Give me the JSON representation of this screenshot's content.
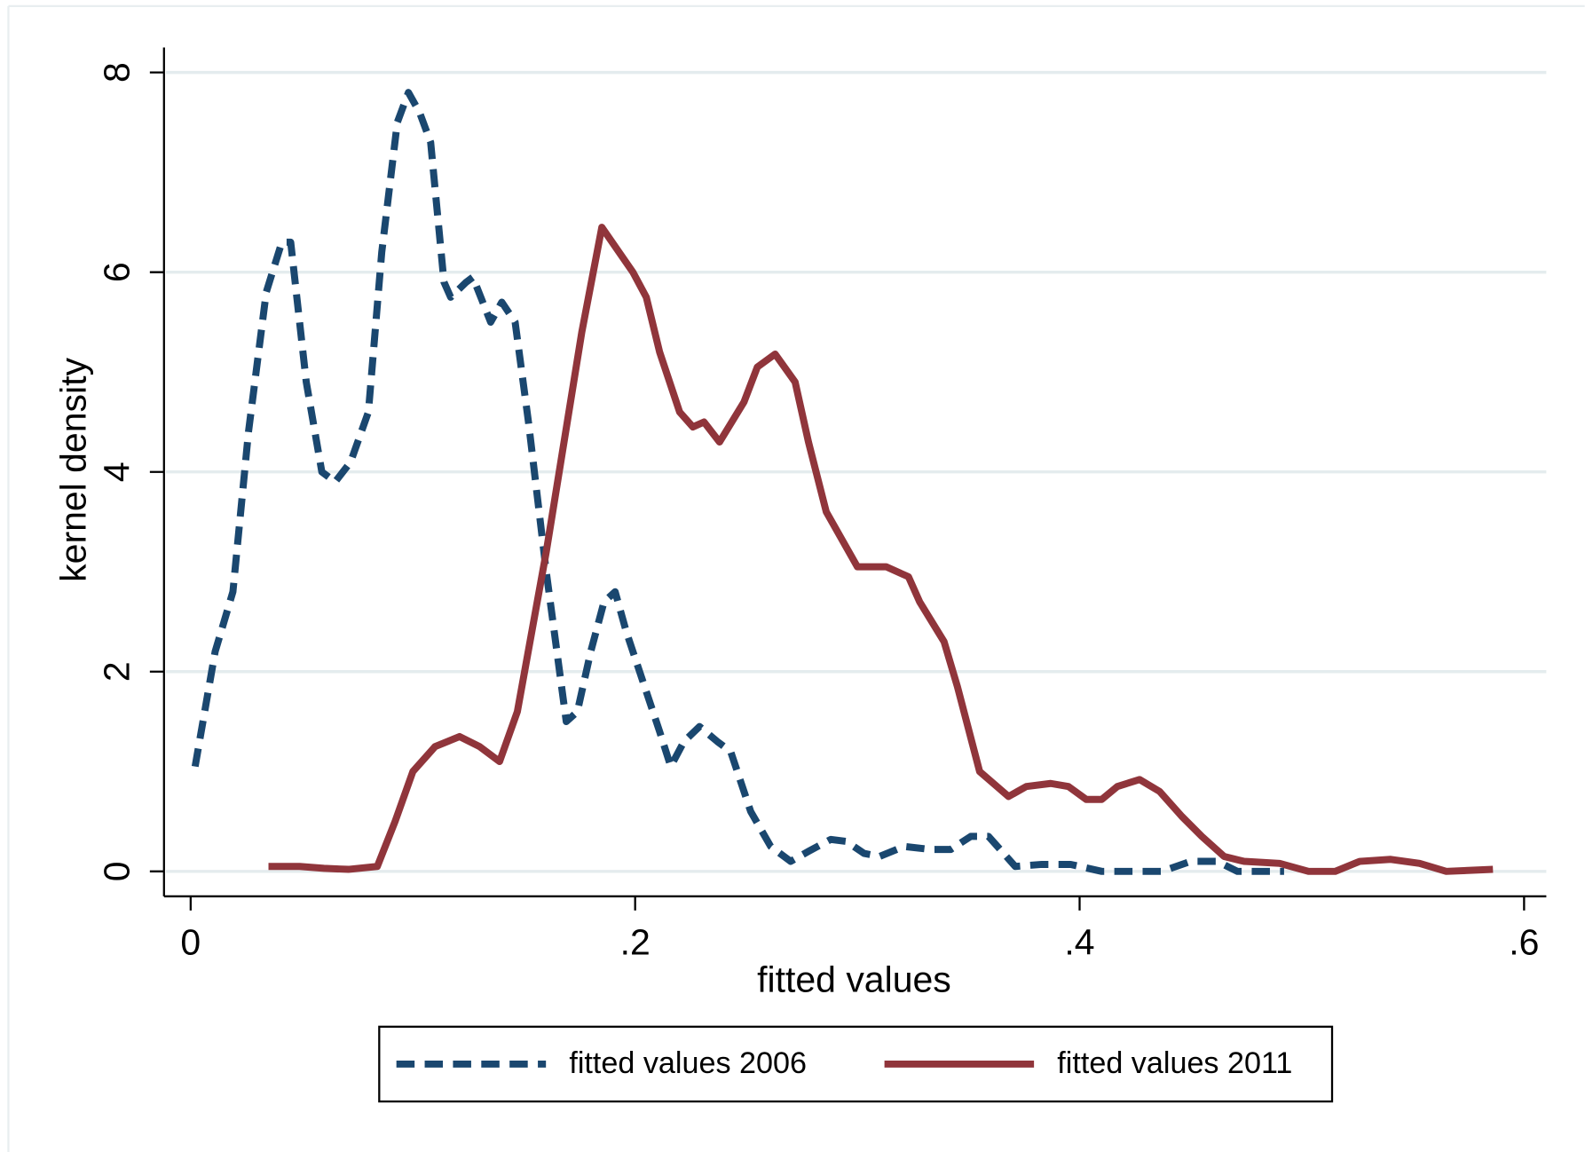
{
  "chart_data": {
    "type": "line",
    "xlabel": "fitted values",
    "ylabel": "kernel density",
    "xlim": [
      -0.012,
      0.61
    ],
    "ylim": [
      -0.25,
      8.25
    ],
    "xticks": [
      0,
      {
        "value": 0.2,
        "label": ".2"
      },
      {
        "value": 0.4,
        "label": ".4"
      },
      {
        "value": 0.6,
        "label": ".6"
      }
    ],
    "yticks": [
      0,
      2,
      4,
      6,
      8
    ],
    "grid": true,
    "legend": "bottom",
    "series": [
      {
        "name": "fitted values 2006",
        "color": "#1a476f",
        "line_style": "dashed",
        "x": [
          0.002,
          0.011,
          0.019,
          0.026,
          0.034,
          0.041,
          0.045,
          0.052,
          0.059,
          0.065,
          0.072,
          0.08,
          0.086,
          0.093,
          0.098,
          0.103,
          0.108,
          0.114,
          0.117,
          0.124,
          0.127,
          0.135,
          0.14,
          0.146,
          0.152,
          0.16,
          0.169,
          0.174,
          0.18,
          0.186,
          0.191,
          0.196,
          0.205,
          0.211,
          0.216,
          0.222,
          0.229,
          0.237,
          0.243,
          0.252,
          0.261,
          0.27,
          0.278,
          0.288,
          0.295,
          0.303,
          0.31,
          0.321,
          0.333,
          0.342,
          0.351,
          0.359,
          0.365,
          0.371,
          0.383,
          0.396,
          0.41,
          0.437,
          0.45,
          0.462,
          0.471,
          0.492
        ],
        "values": [
          1.05,
          2.2,
          2.8,
          4.4,
          5.8,
          6.3,
          6.3,
          4.9,
          4.0,
          3.9,
          4.1,
          4.6,
          6.2,
          7.5,
          7.8,
          7.6,
          7.3,
          5.9,
          5.75,
          5.9,
          5.95,
          5.5,
          5.7,
          5.5,
          4.5,
          3.0,
          1.5,
          1.6,
          2.2,
          2.7,
          2.8,
          2.4,
          1.8,
          1.4,
          1.05,
          1.3,
          1.45,
          1.3,
          1.2,
          0.6,
          0.25,
          0.1,
          0.2,
          0.32,
          0.3,
          0.18,
          0.15,
          0.25,
          0.22,
          0.22,
          0.35,
          0.35,
          0.2,
          0.05,
          0.07,
          0.07,
          0,
          0,
          0.1,
          0.1,
          0,
          0
        ]
      },
      {
        "name": "fitted values 2011",
        "color": "#90353b",
        "line_style": "solid",
        "x": [
          0.035,
          0.049,
          0.06,
          0.071,
          0.084,
          0.092,
          0.1,
          0.11,
          0.121,
          0.13,
          0.139,
          0.147,
          0.16,
          0.176,
          0.185,
          0.199,
          0.205,
          0.211,
          0.22,
          0.226,
          0.231,
          0.238,
          0.249,
          0.255,
          0.263,
          0.272,
          0.278,
          0.286,
          0.3,
          0.313,
          0.323,
          0.328,
          0.339,
          0.345,
          0.355,
          0.368,
          0.376,
          0.387,
          0.395,
          0.403,
          0.41,
          0.417,
          0.427,
          0.436,
          0.446,
          0.455,
          0.465,
          0.474,
          0.49,
          0.503,
          0.515,
          0.526,
          0.54,
          0.553,
          0.565,
          0.586
        ],
        "values": [
          0.05,
          0.05,
          0.03,
          0.02,
          0.05,
          0.5,
          1.0,
          1.25,
          1.35,
          1.25,
          1.1,
          1.6,
          3.2,
          5.4,
          6.45,
          6.0,
          5.75,
          5.2,
          4.6,
          4.45,
          4.5,
          4.3,
          4.7,
          5.05,
          5.18,
          4.9,
          4.3,
          3.6,
          3.05,
          3.05,
          2.95,
          2.7,
          2.3,
          1.85,
          1.0,
          0.75,
          0.85,
          0.88,
          0.85,
          0.72,
          0.72,
          0.85,
          0.92,
          0.8,
          0.55,
          0.35,
          0.15,
          0.1,
          0.08,
          0,
          0,
          0.1,
          0.12,
          0.08,
          0,
          0.02
        ]
      }
    ]
  }
}
